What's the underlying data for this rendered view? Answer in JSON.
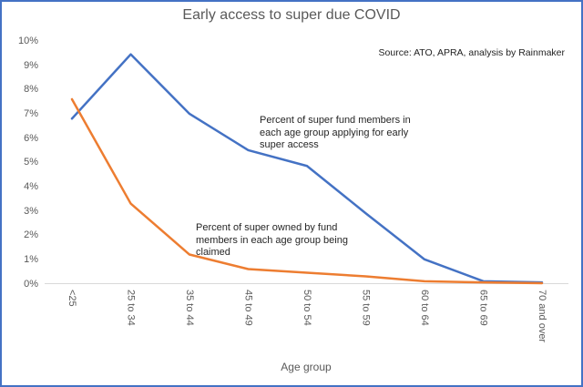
{
  "frame": {
    "border_color": "#4472C4",
    "background": "#FFFFFF"
  },
  "chart_data": {
    "type": "line",
    "title": "Early access to super due COVID",
    "source_note": "Source: ATO, APRA, analysis by Rainmaker",
    "xlabel": "Age group",
    "ylabel": "",
    "categories": [
      "<25",
      "25 to 34",
      "35 to 44",
      "45 to 49",
      "50 to 54",
      "55 to 59",
      "60 to 64",
      "65 to 69",
      "70 and over"
    ],
    "series": [
      {
        "name": "Percent of super fund members in each age group applying for early super access",
        "color": "#4472C4",
        "values": [
          6.8,
          9.45,
          7.0,
          5.5,
          4.85,
          2.9,
          1.0,
          0.1,
          0.05
        ]
      },
      {
        "name": "Percent of super owned by fund members in each age group being claimed",
        "color": "#ED7D31",
        "values": [
          7.6,
          3.3,
          1.2,
          0.6,
          0.45,
          0.3,
          0.1,
          0.05,
          0.02
        ]
      }
    ],
    "ylim": [
      0,
      10
    ],
    "y_ticks": [
      "0%",
      "1%",
      "2%",
      "3%",
      "4%",
      "5%",
      "6%",
      "7%",
      "8%",
      "9%",
      "10%"
    ],
    "grid": "baseline-only",
    "gridline_color": "#D9D9D9",
    "legend": "none (inline text annotations)",
    "annotations": [
      {
        "text": "Percent of super fund members in\neach age group applying for early\nsuper access"
      },
      {
        "text": "Percent of super owned by fund\nmembers in each age group being\nclaimed"
      }
    ]
  }
}
